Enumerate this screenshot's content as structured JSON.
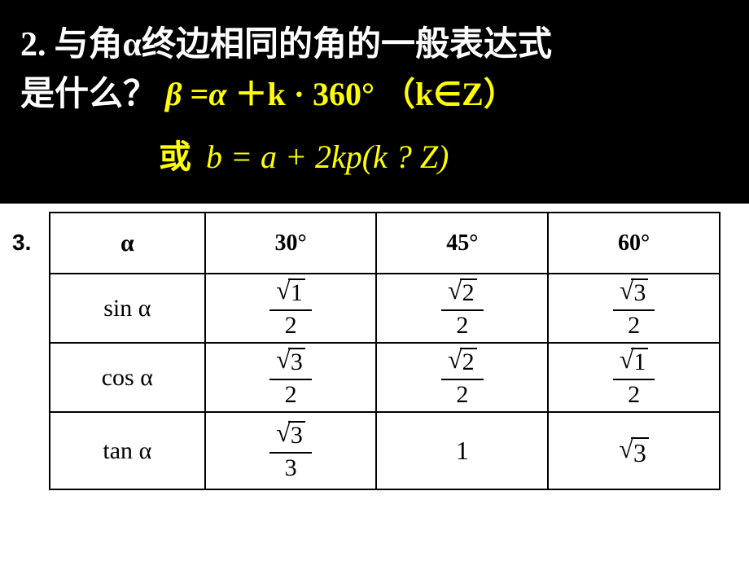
{
  "question": {
    "number": "2.",
    "text_part1": "与角",
    "alpha": "α",
    "text_part2": " 终边相同的角的一般表达式",
    "text_line2": "是什么？",
    "formula1_beta": "β",
    "formula1_eq": " =",
    "formula1_alpha": "α",
    "formula1_rest": " ＋k · 360°  （k∈Z）",
    "huo": "或",
    "formula2": "b = a + 2kp(k ? Z)"
  },
  "table": {
    "num": "3.",
    "header": {
      "alpha": "α",
      "col1": "30°",
      "col2": "45°",
      "col3": "60°"
    },
    "rows": [
      {
        "label_fn": "sin ",
        "label_var": "α",
        "cells": [
          {
            "type": "sqrt_frac",
            "radicand": "1",
            "denom": "2"
          },
          {
            "type": "sqrt_frac",
            "radicand": "2",
            "denom": "2"
          },
          {
            "type": "sqrt_frac",
            "radicand": "3",
            "denom": "2"
          }
        ]
      },
      {
        "label_fn": "cos ",
        "label_var": "α",
        "cells": [
          {
            "type": "sqrt_frac",
            "radicand": "3",
            "denom": "2"
          },
          {
            "type": "sqrt_frac",
            "radicand": "2",
            "denom": "2"
          },
          {
            "type": "sqrt_frac",
            "radicand": "1",
            "denom": "2"
          }
        ]
      },
      {
        "label_fn": "tan ",
        "label_var": "α",
        "cells": [
          {
            "type": "sqrt_frac",
            "radicand": "3",
            "denom": "3"
          },
          {
            "type": "plain",
            "value": "1"
          },
          {
            "type": "sqrt",
            "radicand": "3"
          }
        ]
      }
    ]
  },
  "colors": {
    "bg": "#000000",
    "text_white": "#ffffff",
    "text_yellow": "#ffff00",
    "table_bg": "#ffffff",
    "table_border": "#000000",
    "table_text": "#000000"
  }
}
